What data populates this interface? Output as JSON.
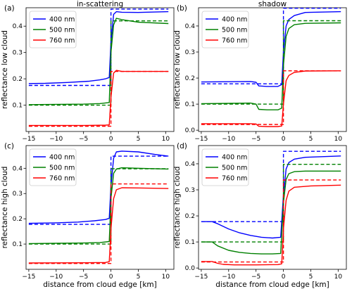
{
  "colors": {
    "400 nm": "#0000ff",
    "500 nm": "#008000",
    "760 nm": "#ff0000"
  },
  "chart_data": [
    {
      "panel": "(a)",
      "title": "in-scattering",
      "type": "line",
      "xlabel": "",
      "ylabel": "reflectance low cloud",
      "xlim": [
        -15.5,
        11.5
      ],
      "ylim": [
        0,
        0.47
      ],
      "xticks": [
        -15,
        -10,
        -5,
        0,
        5,
        10
      ],
      "yticks": [
        0.1,
        0.2,
        0.3,
        0.4
      ],
      "legend": {
        "position": "top-left",
        "entries": [
          "400 nm",
          "500 nm",
          "760 nm"
        ]
      },
      "series": [
        {
          "name": "400 nm",
          "kind": "model",
          "style": "solid",
          "x": [
            -15,
            -12,
            -8,
            -4,
            -2,
            -1,
            -0.3,
            0,
            0.5,
            1,
            2,
            5,
            10.5
          ],
          "y": [
            0.182,
            0.183,
            0.186,
            0.191,
            0.196,
            0.2,
            0.205,
            0.34,
            0.445,
            0.455,
            0.453,
            0.452,
            0.455
          ]
        },
        {
          "name": "400 nm",
          "kind": "reference",
          "style": "dashed",
          "x": [
            -15,
            0,
            0,
            10.5
          ],
          "y": [
            0.175,
            0.175,
            0.465,
            0.465
          ]
        },
        {
          "name": "500 nm",
          "kind": "model",
          "style": "solid",
          "x": [
            -15,
            -10,
            -5,
            -2,
            -0.3,
            0,
            0.5,
            1,
            2,
            5,
            10.5
          ],
          "y": [
            0.102,
            0.103,
            0.104,
            0.106,
            0.11,
            0.3,
            0.405,
            0.43,
            0.425,
            0.415,
            0.41
          ]
        },
        {
          "name": "500 nm",
          "kind": "reference",
          "style": "dashed",
          "x": [
            -15,
            0,
            0,
            10.5
          ],
          "y": [
            0.1,
            0.1,
            0.42,
            0.42
          ]
        },
        {
          "name": "760 nm",
          "kind": "model",
          "style": "solid",
          "x": [
            -15,
            -5,
            -1,
            -0.3,
            0,
            0.5,
            1,
            2,
            5,
            10.5
          ],
          "y": [
            0.023,
            0.023,
            0.024,
            0.025,
            0.13,
            0.222,
            0.232,
            0.228,
            0.228,
            0.228
          ]
        },
        {
          "name": "760 nm",
          "kind": "reference",
          "style": "dashed",
          "x": [
            -15,
            0,
            0,
            10.5
          ],
          "y": [
            0.02,
            0.02,
            0.228,
            0.228
          ]
        }
      ]
    },
    {
      "panel": "(b)",
      "title": "shadow",
      "type": "line",
      "xlabel": "",
      "ylabel": "reflectance low cloud",
      "xlim": [
        -15.5,
        11.5
      ],
      "ylim": [
        -0.005,
        0.47
      ],
      "xticks": [
        -15,
        -10,
        -5,
        0,
        5,
        10
      ],
      "yticks": [
        0.0,
        0.1,
        0.2,
        0.3,
        0.4
      ],
      "legend": {
        "position": "top-left",
        "entries": [
          "400 nm",
          "500 nm",
          "760 nm"
        ]
      },
      "series": [
        {
          "name": "400 nm",
          "kind": "model",
          "style": "solid",
          "x": [
            -15,
            -10,
            -6,
            -5,
            -4.5,
            -3,
            -1,
            -0.3,
            0,
            0.5,
            1,
            2,
            4,
            10.5
          ],
          "y": [
            0.185,
            0.186,
            0.187,
            0.184,
            0.17,
            0.168,
            0.168,
            0.175,
            0.3,
            0.4,
            0.425,
            0.44,
            0.452,
            0.455
          ]
        },
        {
          "name": "400 nm",
          "kind": "reference",
          "style": "dashed",
          "x": [
            -15,
            0,
            0,
            10.5
          ],
          "y": [
            0.178,
            0.178,
            0.468,
            0.468
          ]
        },
        {
          "name": "500 nm",
          "kind": "model",
          "style": "solid",
          "x": [
            -15,
            -10,
            -6,
            -5,
            -4.5,
            -3,
            -1,
            -0.3,
            0,
            0.5,
            1,
            2,
            4,
            10.5
          ],
          "y": [
            0.102,
            0.103,
            0.104,
            0.1,
            0.08,
            0.078,
            0.078,
            0.085,
            0.25,
            0.36,
            0.39,
            0.405,
            0.41,
            0.412
          ]
        },
        {
          "name": "500 nm",
          "kind": "reference",
          "style": "dashed",
          "x": [
            -15,
            0,
            0,
            10.5
          ],
          "y": [
            0.1,
            0.1,
            0.42,
            0.42
          ]
        },
        {
          "name": "760 nm",
          "kind": "model",
          "style": "solid",
          "x": [
            -15,
            -6,
            -5,
            -4.5,
            -3,
            -1,
            -0.3,
            0,
            0.5,
            1,
            2,
            4,
            10.5
          ],
          "y": [
            0.025,
            0.025,
            0.024,
            0.015,
            0.014,
            0.014,
            0.016,
            0.1,
            0.19,
            0.21,
            0.222,
            0.227,
            0.228
          ]
        },
        {
          "name": "760 nm",
          "kind": "reference",
          "style": "dashed",
          "x": [
            -15,
            0,
            0,
            10.5
          ],
          "y": [
            0.022,
            0.022,
            0.228,
            0.228
          ]
        }
      ]
    },
    {
      "panel": "(c)",
      "title": "",
      "type": "line",
      "xlabel": "distance from cloud edge [km]",
      "ylabel": "reflectance high cloud",
      "xlim": [
        -15.5,
        11.5
      ],
      "ylim": [
        0,
        0.49
      ],
      "xticks": [
        -15,
        -10,
        -5,
        0,
        5,
        10
      ],
      "yticks": [
        0.1,
        0.2,
        0.3,
        0.4
      ],
      "legend": {
        "position": "top-left",
        "entries": [
          "400 nm",
          "500 nm",
          "760 nm"
        ]
      },
      "series": [
        {
          "name": "400 nm",
          "kind": "model",
          "style": "solid",
          "x": [
            -15,
            -10,
            -6,
            -3,
            -1,
            -0.3,
            0,
            0.5,
            1,
            2,
            5,
            8,
            10.5
          ],
          "y": [
            0.182,
            0.184,
            0.187,
            0.192,
            0.197,
            0.202,
            0.33,
            0.44,
            0.465,
            0.468,
            0.465,
            0.455,
            0.448
          ]
        },
        {
          "name": "400 nm",
          "kind": "reference",
          "style": "dashed",
          "x": [
            -15,
            0,
            0,
            10.5
          ],
          "y": [
            0.178,
            0.178,
            0.448,
            0.448
          ]
        },
        {
          "name": "500 nm",
          "kind": "model",
          "style": "solid",
          "x": [
            -15,
            -10,
            -5,
            -2,
            -0.3,
            0,
            0.5,
            1,
            2,
            5,
            10.5
          ],
          "y": [
            0.102,
            0.103,
            0.104,
            0.106,
            0.11,
            0.28,
            0.38,
            0.397,
            0.402,
            0.4,
            0.397
          ]
        },
        {
          "name": "500 nm",
          "kind": "reference",
          "style": "dashed",
          "x": [
            -15,
            0,
            0,
            10.5
          ],
          "y": [
            0.1,
            0.1,
            0.398,
            0.398
          ]
        },
        {
          "name": "760 nm",
          "kind": "model",
          "style": "solid",
          "x": [
            -15,
            -5,
            -1,
            -0.3,
            0,
            0.5,
            1,
            2,
            5,
            10.5
          ],
          "y": [
            0.025,
            0.026,
            0.027,
            0.03,
            0.16,
            0.28,
            0.315,
            0.323,
            0.322,
            0.32
          ]
        },
        {
          "name": "760 nm",
          "kind": "reference",
          "style": "dashed",
          "x": [
            -15,
            0,
            0,
            10.5
          ],
          "y": [
            0.023,
            0.023,
            0.338,
            0.338
          ]
        }
      ]
    },
    {
      "panel": "(d)",
      "title": "",
      "type": "line",
      "xlabel": "distance from cloud edge [km]",
      "ylabel": "reflectance high cloud",
      "xlim": [
        -15.5,
        11.5
      ],
      "ylim": [
        -0.005,
        0.47
      ],
      "xticks": [
        -15,
        -10,
        -5,
        0,
        5,
        10
      ],
      "yticks": [
        0.0,
        0.1,
        0.2,
        0.3,
        0.4
      ],
      "legend": {
        "position": "top-left",
        "entries": [
          "400 nm",
          "500 nm",
          "760 nm"
        ]
      },
      "series": [
        {
          "name": "400 nm",
          "kind": "model",
          "style": "solid",
          "x": [
            -15,
            -13,
            -12,
            -10,
            -8,
            -6,
            -4,
            -2,
            -0.5,
            0,
            0.5,
            1,
            2,
            4,
            10.5
          ],
          "y": [
            0.178,
            0.178,
            0.17,
            0.15,
            0.135,
            0.125,
            0.118,
            0.115,
            0.118,
            0.28,
            0.38,
            0.405,
            0.418,
            0.425,
            0.43
          ]
        },
        {
          "name": "400 nm",
          "kind": "reference",
          "style": "dashed",
          "x": [
            -15,
            0,
            0,
            10.5
          ],
          "y": [
            0.178,
            0.178,
            0.448,
            0.448
          ]
        },
        {
          "name": "500 nm",
          "kind": "model",
          "style": "solid",
          "x": [
            -15,
            -13,
            -12,
            -10,
            -8,
            -6,
            -4,
            -2,
            -0.5,
            0,
            0.5,
            1,
            2,
            4,
            10.5
          ],
          "y": [
            0.1,
            0.1,
            0.085,
            0.068,
            0.06,
            0.056,
            0.054,
            0.054,
            0.056,
            0.25,
            0.34,
            0.362,
            0.37,
            0.372,
            0.372
          ]
        },
        {
          "name": "500 nm",
          "kind": "reference",
          "style": "dashed",
          "x": [
            -15,
            0,
            0,
            10.5
          ],
          "y": [
            0.1,
            0.1,
            0.398,
            0.398
          ]
        },
        {
          "name": "760 nm",
          "kind": "model",
          "style": "solid",
          "x": [
            -15,
            -13,
            -12,
            -11,
            -9,
            -5,
            -1,
            -0.3,
            0,
            0.5,
            1,
            2,
            5,
            10.5
          ],
          "y": [
            0.025,
            0.025,
            0.018,
            0.014,
            0.012,
            0.012,
            0.013,
            0.016,
            0.15,
            0.26,
            0.295,
            0.31,
            0.315,
            0.318
          ]
        },
        {
          "name": "760 nm",
          "kind": "reference",
          "style": "dashed",
          "x": [
            -15,
            0,
            0,
            10.5
          ],
          "y": [
            0.023,
            0.023,
            0.338,
            0.338
          ]
        }
      ]
    }
  ]
}
